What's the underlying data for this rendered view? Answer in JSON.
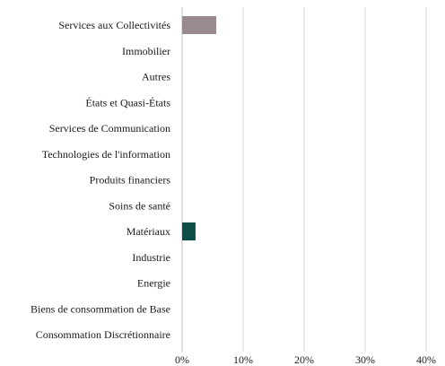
{
  "chart_data": {
    "type": "bar",
    "orientation": "horizontal",
    "title": "",
    "xlabel": "",
    "ylabel": "",
    "categories": [
      "Services aux Collectivités",
      "Immobilier",
      "Autres",
      "États et Quasi-États",
      "Services de Communication",
      "Technologies de l'information",
      "Produits financiers",
      "Soins de santé",
      "Matériaux",
      "Industrie",
      "Energie",
      "Biens de consommation de Base",
      "Consommation Discrétionnaire"
    ],
    "values": [
      5.6,
      0,
      0,
      0,
      0,
      0,
      0,
      0,
      2.2,
      0,
      0,
      0,
      0
    ],
    "bar_colors": [
      "#9a8a90",
      "#9a8a90",
      "#9a8a90",
      "#9a8a90",
      "#9a8a90",
      "#9a8a90",
      "#9a8a90",
      "#9a8a90",
      "#0f4d49",
      "#9a8a90",
      "#9a8a90",
      "#9a8a90",
      "#9a8a90"
    ],
    "xlim": [
      0,
      40
    ],
    "x_ticks": [
      0,
      10,
      20,
      30,
      40
    ],
    "x_tick_labels": [
      "0%",
      "10%",
      "20%",
      "30%",
      "40%"
    ],
    "grid": "vertical",
    "legend": "none"
  }
}
